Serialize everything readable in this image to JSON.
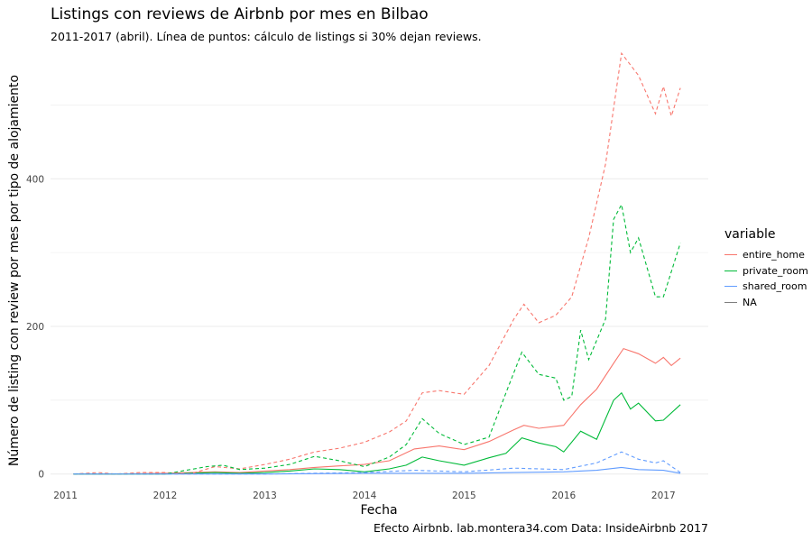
{
  "chart_data": {
    "type": "line",
    "title": "Listings con reviews de Airbnb por mes en Bilbao",
    "subtitle": "2011-2017 (abril). Línea de puntos: cálculo de listings si 30% dejan reviews.",
    "xlabel": "Fecha",
    "ylabel": "Número de listing con review por mes por tipo de alojamiento",
    "caption": "Efecto Airbnb. lab.montera34.com Data: InsideAirbnb 2017",
    "xlim": [
      2010.85,
      2017.45
    ],
    "ylim": [
      -15,
      575
    ],
    "xticks": [
      2011,
      2012,
      2013,
      2014,
      2015,
      2016,
      2017
    ],
    "yticks": [
      0,
      200,
      400
    ],
    "grid": true,
    "legend": {
      "title": "variable",
      "placement": "right",
      "entries": [
        {
          "name": "entire_home",
          "color": "#F8766D"
        },
        {
          "name": "private_room",
          "color": "#00BA38"
        },
        {
          "name": "shared_room",
          "color": "#619CFF"
        },
        {
          "name": "NA",
          "color": "#7F7F7F"
        }
      ]
    },
    "series": [
      {
        "name": "entire_home",
        "color": "#F8766D",
        "dash": false,
        "x": [
          2011.08,
          2011.5,
          2012.0,
          2012.5,
          2012.75,
          2013.0,
          2013.25,
          2013.5,
          2013.75,
          2014.0,
          2014.25,
          2014.5,
          2014.75,
          2015.0,
          2015.25,
          2015.5,
          2015.6,
          2015.75,
          2016.0,
          2016.17,
          2016.33,
          2016.5,
          2016.6,
          2016.75,
          2016.92,
          2017.0,
          2017.08,
          2017.17
        ],
        "y": [
          0,
          0,
          1,
          3,
          2,
          4,
          6,
          9,
          11,
          13,
          18,
          34,
          38,
          33,
          44,
          60,
          66,
          62,
          66,
          94,
          115,
          150,
          170,
          163,
          150,
          158,
          147,
          157
        ]
      },
      {
        "name": "private_room",
        "color": "#00BA38",
        "dash": false,
        "x": [
          2011.08,
          2011.5,
          2012.0,
          2012.5,
          2012.75,
          2013.0,
          2013.25,
          2013.5,
          2013.75,
          2014.0,
          2014.25,
          2014.42,
          2014.58,
          2014.75,
          2015.0,
          2015.25,
          2015.42,
          2015.58,
          2015.75,
          2015.92,
          2016.0,
          2016.17,
          2016.33,
          2016.5,
          2016.58,
          2016.67,
          2016.75,
          2016.92,
          2017.0,
          2017.17
        ],
        "y": [
          0,
          0,
          0,
          2,
          1,
          2,
          4,
          7,
          6,
          3,
          7,
          12,
          23,
          18,
          12,
          22,
          28,
          49,
          42,
          37,
          30,
          58,
          47,
          100,
          110,
          88,
          96,
          72,
          73,
          94
        ]
      },
      {
        "name": "shared_room",
        "color": "#619CFF",
        "dash": false,
        "x": [
          2011.08,
          2012.0,
          2013.0,
          2014.0,
          2015.0,
          2015.5,
          2016.0,
          2016.33,
          2016.58,
          2016.75,
          2017.0,
          2017.17
        ],
        "y": [
          0,
          0,
          0,
          1,
          1,
          2,
          3,
          5,
          9,
          6,
          5,
          1
        ]
      },
      {
        "name": "entire_home",
        "color": "#F8766D",
        "dash": true,
        "x": [
          2011.08,
          2011.33,
          2011.5,
          2011.75,
          2012.0,
          2012.25,
          2012.5,
          2012.75,
          2013.0,
          2013.25,
          2013.5,
          2013.75,
          2014.0,
          2014.25,
          2014.42,
          2014.58,
          2014.75,
          2015.0,
          2015.25,
          2015.5,
          2015.6,
          2015.75,
          2015.92,
          2016.08,
          2016.25,
          2016.42,
          2016.58,
          2016.75,
          2016.92,
          2017.0,
          2017.08,
          2017.17
        ],
        "y": [
          0,
          2,
          0,
          2,
          2,
          0,
          10,
          7,
          13,
          20,
          30,
          35,
          43,
          57,
          72,
          110,
          113,
          108,
          147,
          210,
          230,
          205,
          215,
          240,
          320,
          420,
          570,
          540,
          488,
          525,
          485,
          523
        ]
      },
      {
        "name": "private_room",
        "color": "#00BA38",
        "dash": true,
        "x": [
          2011.08,
          2011.5,
          2012.0,
          2012.42,
          2012.58,
          2012.75,
          2013.0,
          2013.25,
          2013.5,
          2013.75,
          2014.0,
          2014.25,
          2014.42,
          2014.58,
          2014.75,
          2015.0,
          2015.25,
          2015.42,
          2015.58,
          2015.75,
          2015.92,
          2016.0,
          2016.08,
          2016.17,
          2016.25,
          2016.42,
          2016.5,
          2016.58,
          2016.67,
          2016.75,
          2016.92,
          2017.0,
          2017.17
        ],
        "y": [
          0,
          0,
          0,
          10,
          12,
          6,
          8,
          13,
          24,
          18,
          10,
          23,
          40,
          75,
          55,
          40,
          50,
          110,
          165,
          135,
          130,
          100,
          105,
          195,
          155,
          210,
          345,
          365,
          300,
          320,
          240,
          240,
          313
        ]
      },
      {
        "name": "shared_room",
        "color": "#619CFF",
        "dash": true,
        "x": [
          2011.08,
          2012.0,
          2013.0,
          2014.0,
          2014.5,
          2015.0,
          2015.5,
          2016.0,
          2016.33,
          2016.58,
          2016.75,
          2016.92,
          2017.0,
          2017.17
        ],
        "y": [
          0,
          0,
          0,
          2,
          5,
          3,
          8,
          6,
          15,
          30,
          20,
          15,
          18,
          2
        ]
      }
    ]
  }
}
